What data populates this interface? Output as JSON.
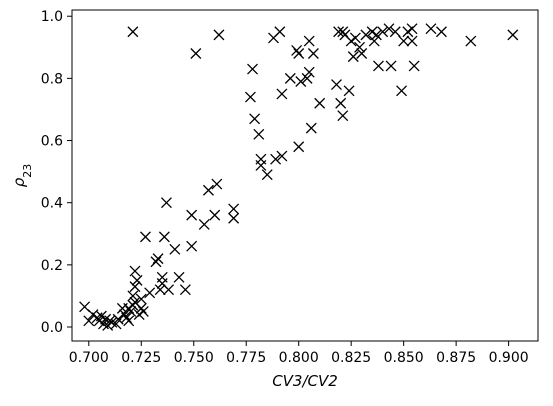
{
  "chart_data": {
    "type": "scatter",
    "title": "",
    "xlabel": "CV3/CV2",
    "ylabel_main": "ρ",
    "ylabel_sub": "23",
    "xlim": [
      0.692,
      0.914
    ],
    "ylim": [
      -0.045,
      1.02
    ],
    "xticks": [
      0.7,
      0.725,
      0.75,
      0.775,
      0.8,
      0.825,
      0.85,
      0.875,
      0.9
    ],
    "xtick_labels": [
      "0.700",
      "0.725",
      "0.750",
      "0.775",
      "0.800",
      "0.825",
      "0.850",
      "0.875",
      "0.900"
    ],
    "yticks": [
      0.0,
      0.2,
      0.4,
      0.6,
      0.8,
      1.0
    ],
    "ytick_labels": [
      "0.0",
      "0.2",
      "0.4",
      "0.6",
      "0.8",
      "1.0"
    ],
    "grid": false,
    "legend": false,
    "marker": "x",
    "marker_color": "#000000",
    "points": [
      {
        "x": 0.698,
        "y": 0.065
      },
      {
        "x": 0.7,
        "y": 0.02
      },
      {
        "x": 0.702,
        "y": 0.04
      },
      {
        "x": 0.704,
        "y": 0.03
      },
      {
        "x": 0.705,
        "y": 0.02
      },
      {
        "x": 0.706,
        "y": 0.035
      },
      {
        "x": 0.707,
        "y": 0.01
      },
      {
        "x": 0.708,
        "y": 0.025
      },
      {
        "x": 0.709,
        "y": 0.005
      },
      {
        "x": 0.71,
        "y": 0.02
      },
      {
        "x": 0.711,
        "y": 0.015
      },
      {
        "x": 0.713,
        "y": 0.01
      },
      {
        "x": 0.714,
        "y": 0.025
      },
      {
        "x": 0.716,
        "y": 0.06
      },
      {
        "x": 0.717,
        "y": 0.04
      },
      {
        "x": 0.718,
        "y": 0.03
      },
      {
        "x": 0.719,
        "y": 0.02
      },
      {
        "x": 0.719,
        "y": 0.06
      },
      {
        "x": 0.72,
        "y": 0.05
      },
      {
        "x": 0.721,
        "y": 0.07
      },
      {
        "x": 0.721,
        "y": 0.1
      },
      {
        "x": 0.722,
        "y": 0.08
      },
      {
        "x": 0.722,
        "y": 0.13
      },
      {
        "x": 0.723,
        "y": 0.15
      },
      {
        "x": 0.722,
        "y": 0.18
      },
      {
        "x": 0.724,
        "y": 0.04
      },
      {
        "x": 0.725,
        "y": 0.06
      },
      {
        "x": 0.725,
        "y": 0.09
      },
      {
        "x": 0.726,
        "y": 0.05
      },
      {
        "x": 0.727,
        "y": 0.29
      },
      {
        "x": 0.729,
        "y": 0.11
      },
      {
        "x": 0.732,
        "y": 0.21
      },
      {
        "x": 0.733,
        "y": 0.22
      },
      {
        "x": 0.734,
        "y": 0.12
      },
      {
        "x": 0.735,
        "y": 0.16
      },
      {
        "x": 0.735,
        "y": 0.14
      },
      {
        "x": 0.736,
        "y": 0.29
      },
      {
        "x": 0.737,
        "y": 0.4
      },
      {
        "x": 0.738,
        "y": 0.12
      },
      {
        "x": 0.741,
        "y": 0.25
      },
      {
        "x": 0.743,
        "y": 0.16
      },
      {
        "x": 0.746,
        "y": 0.12
      },
      {
        "x": 0.749,
        "y": 0.36
      },
      {
        "x": 0.749,
        "y": 0.26
      },
      {
        "x": 0.751,
        "y": 0.88
      },
      {
        "x": 0.755,
        "y": 0.33
      },
      {
        "x": 0.757,
        "y": 0.44
      },
      {
        "x": 0.76,
        "y": 0.36
      },
      {
        "x": 0.761,
        "y": 0.46
      },
      {
        "x": 0.721,
        "y": 0.95
      },
      {
        "x": 0.762,
        "y": 0.94
      },
      {
        "x": 0.769,
        "y": 0.38
      },
      {
        "x": 0.769,
        "y": 0.35
      },
      {
        "x": 0.777,
        "y": 0.74
      },
      {
        "x": 0.778,
        "y": 0.83
      },
      {
        "x": 0.779,
        "y": 0.67
      },
      {
        "x": 0.781,
        "y": 0.62
      },
      {
        "x": 0.782,
        "y": 0.54
      },
      {
        "x": 0.782,
        "y": 0.52
      },
      {
        "x": 0.785,
        "y": 0.49
      },
      {
        "x": 0.788,
        "y": 0.93
      },
      {
        "x": 0.789,
        "y": 0.54
      },
      {
        "x": 0.791,
        "y": 0.95
      },
      {
        "x": 0.792,
        "y": 0.75
      },
      {
        "x": 0.792,
        "y": 0.55
      },
      {
        "x": 0.796,
        "y": 0.8
      },
      {
        "x": 0.799,
        "y": 0.89
      },
      {
        "x": 0.8,
        "y": 0.88
      },
      {
        "x": 0.8,
        "y": 0.58
      },
      {
        "x": 0.801,
        "y": 0.79
      },
      {
        "x": 0.804,
        "y": 0.8
      },
      {
        "x": 0.805,
        "y": 0.92
      },
      {
        "x": 0.805,
        "y": 0.82
      },
      {
        "x": 0.806,
        "y": 0.64
      },
      {
        "x": 0.807,
        "y": 0.88
      },
      {
        "x": 0.81,
        "y": 0.72
      },
      {
        "x": 0.818,
        "y": 0.78
      },
      {
        "x": 0.819,
        "y": 0.95
      },
      {
        "x": 0.82,
        "y": 0.72
      },
      {
        "x": 0.821,
        "y": 0.95
      },
      {
        "x": 0.821,
        "y": 0.68
      },
      {
        "x": 0.822,
        "y": 0.94
      },
      {
        "x": 0.824,
        "y": 0.76
      },
      {
        "x": 0.825,
        "y": 0.92
      },
      {
        "x": 0.826,
        "y": 0.87
      },
      {
        "x": 0.827,
        "y": 0.93
      },
      {
        "x": 0.829,
        "y": 0.9
      },
      {
        "x": 0.83,
        "y": 0.88
      },
      {
        "x": 0.832,
        "y": 0.94
      },
      {
        "x": 0.835,
        "y": 0.95
      },
      {
        "x": 0.836,
        "y": 0.92
      },
      {
        "x": 0.837,
        "y": 0.94
      },
      {
        "x": 0.838,
        "y": 0.84
      },
      {
        "x": 0.84,
        "y": 0.95
      },
      {
        "x": 0.843,
        "y": 0.96
      },
      {
        "x": 0.844,
        "y": 0.84
      },
      {
        "x": 0.846,
        "y": 0.95
      },
      {
        "x": 0.849,
        "y": 0.76
      },
      {
        "x": 0.85,
        "y": 0.92
      },
      {
        "x": 0.852,
        "y": 0.95
      },
      {
        "x": 0.854,
        "y": 0.92
      },
      {
        "x": 0.854,
        "y": 0.96
      },
      {
        "x": 0.855,
        "y": 0.84
      },
      {
        "x": 0.863,
        "y": 0.96
      },
      {
        "x": 0.868,
        "y": 0.95
      },
      {
        "x": 0.882,
        "y": 0.92
      },
      {
        "x": 0.902,
        "y": 0.94
      }
    ]
  }
}
